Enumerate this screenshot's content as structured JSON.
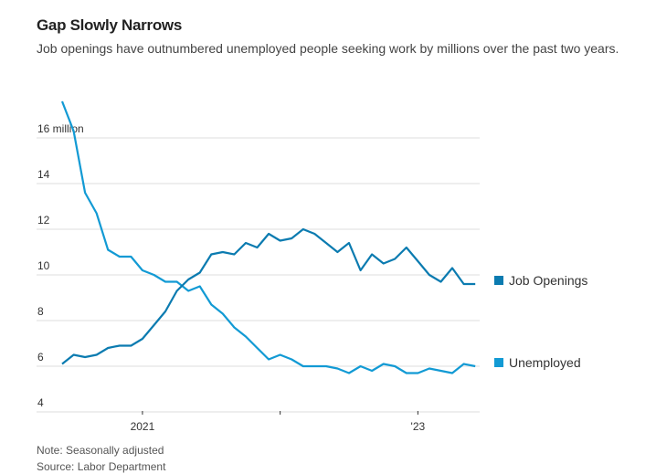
{
  "header": {
    "title": "Gap Slowly Narrows",
    "subtitle": "Job openings have outnumbered unemployed people seeking work by millions over the past two years."
  },
  "footer": {
    "note": "Note: Seasonally adjusted",
    "source": "Source: Labor Department"
  },
  "colors": {
    "job_openings": "#0b7bb0",
    "unemployed": "#129ad4",
    "grid": "#eeeeee"
  },
  "chart_data": {
    "type": "line",
    "title": "Gap Slowly Narrows",
    "xlabel": "",
    "ylabel": "",
    "ylim": [
      4,
      17.6
    ],
    "y_ticks": [
      {
        "value": 16,
        "label": "16 million"
      },
      {
        "value": 14,
        "label": "14"
      },
      {
        "value": 12,
        "label": "12"
      },
      {
        "value": 10,
        "label": "10"
      },
      {
        "value": 8,
        "label": "8"
      },
      {
        "value": 6,
        "label": "6"
      },
      {
        "value": 4,
        "label": "4"
      }
    ],
    "x_start": "2020-06",
    "x_ticks": [
      {
        "index": 7,
        "label": "2021"
      },
      {
        "index": 19,
        "label": ""
      },
      {
        "index": 31,
        "label": "'23"
      }
    ],
    "grid": true,
    "legend_position": "right-inline",
    "series": [
      {
        "name": "Job Openings",
        "values": [
          6.1,
          6.5,
          6.4,
          6.5,
          6.8,
          6.9,
          6.9,
          7.2,
          7.8,
          8.4,
          9.3,
          9.8,
          10.1,
          10.9,
          11.0,
          10.9,
          11.4,
          11.2,
          11.8,
          11.5,
          11.6,
          12.0,
          11.8,
          11.4,
          11.0,
          11.4,
          10.2,
          10.9,
          10.5,
          10.7,
          11.2,
          10.6,
          10.0,
          9.7,
          10.3,
          9.6,
          9.6
        ]
      },
      {
        "name": "Unemployed",
        "values": [
          17.6,
          16.3,
          13.6,
          12.7,
          11.1,
          10.8,
          10.8,
          10.2,
          10.0,
          9.7,
          9.7,
          9.3,
          9.5,
          8.7,
          8.3,
          7.7,
          7.3,
          6.8,
          6.3,
          6.5,
          6.3,
          6.0,
          6.0,
          6.0,
          5.9,
          5.7,
          6.0,
          5.8,
          6.1,
          6.0,
          5.7,
          5.7,
          5.9,
          5.8,
          5.7,
          6.1,
          6.0
        ]
      }
    ]
  }
}
